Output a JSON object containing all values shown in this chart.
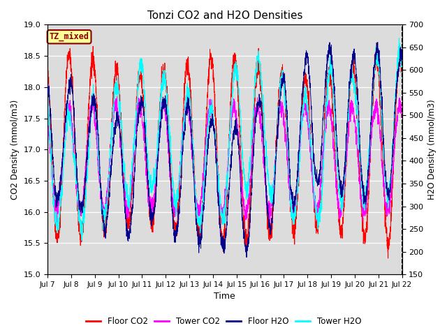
{
  "title": "Tonzi CO2 and H2O Densities",
  "xlabel": "Time",
  "ylabel_left": "CO2 Density (mmol/m3)",
  "ylabel_right": "H2O Density (mmol/m3)",
  "co2_ylim": [
    15.0,
    19.0
  ],
  "h2o_ylim": [
    150,
    700
  ],
  "co2_yticks": [
    15.0,
    15.5,
    16.0,
    16.5,
    17.0,
    17.5,
    18.0,
    18.5,
    19.0
  ],
  "h2o_yticks": [
    150,
    200,
    250,
    300,
    350,
    400,
    450,
    500,
    550,
    600,
    650,
    700
  ],
  "xtick_labels": [
    "Jul 7",
    "Jul 8",
    "Jul 9",
    "Jul 10",
    "Jul 11",
    "Jul 12",
    "Jul 13",
    "Jul 14",
    "Jul 15",
    "Jul 16",
    "Jul 17",
    "Jul 18",
    "Jul 19",
    "Jul 20",
    "Jul 21",
    "Jul 22"
  ],
  "annotation_text": "TZ_mixed",
  "annotation_color": "#8B0000",
  "annotation_bg": "#FFFF99",
  "annotation_border": "#8B0000",
  "floor_co2_color": "#FF0000",
  "tower_co2_color": "#FF00FF",
  "floor_h2o_color": "#00008B",
  "tower_h2o_color": "#00FFFF",
  "bg_color": "#DCDCDC",
  "legend_labels": [
    "Floor CO2",
    "Tower CO2",
    "Floor H2O",
    "Tower H2O"
  ],
  "n_points": 3000,
  "n_days": 15,
  "seed": 7
}
